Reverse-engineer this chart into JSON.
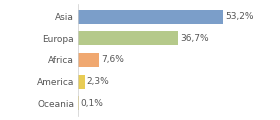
{
  "categories": [
    "Asia",
    "Europa",
    "Africa",
    "America",
    "Oceania"
  ],
  "values": [
    53.2,
    36.7,
    7.6,
    2.3,
    0.1
  ],
  "labels": [
    "53,2%",
    "36,7%",
    "7,6%",
    "2,3%",
    "0,1%"
  ],
  "bar_colors": [
    "#7b9ec9",
    "#b5c98a",
    "#f0a870",
    "#e8cc55",
    "#e8cc55"
  ],
  "background_color": "#ffffff",
  "text_color": "#555555",
  "label_fontsize": 6.5,
  "ytick_fontsize": 6.5,
  "bar_height": 0.65,
  "xlim": [
    0,
    72
  ]
}
